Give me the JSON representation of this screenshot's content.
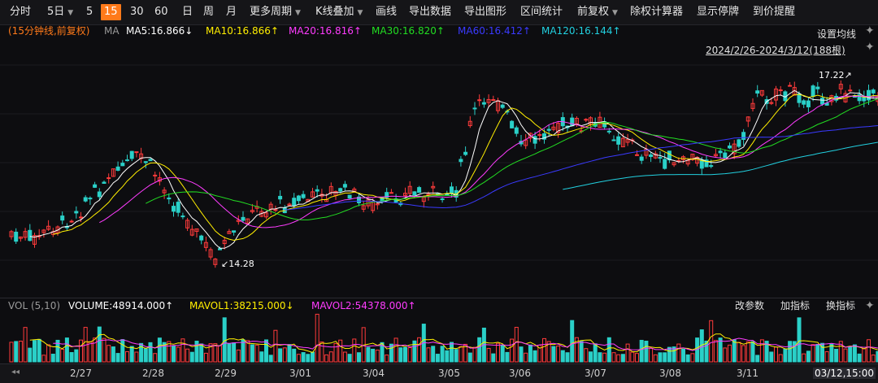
{
  "toolbar": {
    "items": [
      {
        "label": "分时",
        "active": false
      },
      {
        "label": "5日",
        "active": false,
        "caret": true
      },
      {
        "label": "5",
        "active": false
      },
      {
        "label": "15",
        "active": true
      },
      {
        "label": "30",
        "active": false
      },
      {
        "label": "60",
        "active": false
      },
      {
        "label": "日",
        "active": false
      },
      {
        "label": "周",
        "active": false
      },
      {
        "label": "月",
        "active": false
      },
      {
        "label": "更多周期",
        "active": false,
        "caret": true
      },
      {
        "label": "K线叠加",
        "active": false,
        "caret": true
      },
      {
        "label": "画线",
        "active": false
      },
      {
        "label": "导出数据",
        "active": false
      },
      {
        "label": "导出图形",
        "active": false
      },
      {
        "label": "区间统计",
        "active": false
      },
      {
        "label": "前复权",
        "active": false,
        "caret": true
      },
      {
        "label": "除权计算器",
        "active": false
      },
      {
        "label": "显示停牌",
        "active": false
      },
      {
        "label": "到价提醒",
        "active": false
      }
    ]
  },
  "ma_legend": {
    "period_label": "(15分钟线,前复权)",
    "ma_label": "MA",
    "items": [
      {
        "text": "MA5:16.866↓",
        "color": "#ffffff"
      },
      {
        "text": "MA10:16.866↑",
        "color": "#ffee00"
      },
      {
        "text": "MA20:16.816↑",
        "color": "#ff3cff"
      },
      {
        "text": "MA30:16.820↑",
        "color": "#22dd22"
      },
      {
        "text": "MA60:16.412↑",
        "color": "#3a3aff"
      },
      {
        "text": "MA120:16.144↑",
        "color": "#22d0e0"
      }
    ]
  },
  "settings_link": "设置均线",
  "date_range": "2024/2/26-2024/3/12(188根)",
  "annotations": {
    "high": "17.22↗",
    "low": "↙14.28"
  },
  "volume": {
    "label": "VOL (5,10)",
    "volume": "VOLUME:48914.000↑",
    "mavol1": "MAVOL1:38215.000↓",
    "mavol2": "MAVOL2:54378.000↑",
    "colors": {
      "volume": "#ffffff",
      "mavol1": "#ffee00",
      "mavol2": "#ff3cff"
    },
    "actions": [
      "改参数",
      "加指标",
      "换指标"
    ]
  },
  "x_axis": {
    "labels": [
      "2/27",
      "2/28",
      "2/29",
      "3/01",
      "3/04",
      "3/05",
      "3/06",
      "3/07",
      "3/08",
      "3/11"
    ],
    "current": "03/12,15:00"
  },
  "colors": {
    "up": "#ff3b3b",
    "down": "#2ad0c8",
    "accent": "#ff7a1a",
    "background": "#0d0d10"
  }
}
